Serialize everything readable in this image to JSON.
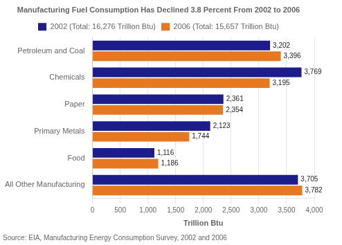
{
  "chart_data": {
    "type": "bar",
    "orientation": "horizontal",
    "title": "Manufacturing Fuel Consumption Has Declined 3.8 Percent From 2002 to 2006",
    "categories": [
      "Petroleum and Coal",
      "Chemicals",
      "Paper",
      "Primary Metals",
      "Food",
      "All Other Manufacturing"
    ],
    "series": [
      {
        "name": "2002 (Total: 16,276 Trillion Btu)",
        "color": "#1C1C8A",
        "values": [
          3202,
          3769,
          2361,
          2123,
          1116,
          3705
        ],
        "value_labels": [
          "3,202",
          "3,769",
          "2,361",
          "2,123",
          "1,116",
          "3,705"
        ]
      },
      {
        "name": "2006 (Total: 15,657 Trillion Btu)",
        "color": "#E87820",
        "values": [
          3396,
          3195,
          2354,
          1744,
          1186,
          3782
        ],
        "value_labels": [
          "3,396",
          "3,195",
          "2,354",
          "1,744",
          "1,186",
          "3,782"
        ]
      }
    ],
    "xlabel": "Trillion Btu",
    "xlim": [
      0,
      4000
    ],
    "xticks": [
      0,
      500,
      {
        "value": 1000,
        "label": "1,000"
      },
      {
        "value": 1500,
        "label": "1,500"
      },
      {
        "value": 2000,
        "label": "2,000"
      },
      {
        "value": 2500,
        "label": "2,500"
      },
      {
        "value": 3000,
        "label": "3,000"
      },
      {
        "value": 3500,
        "label": "3,500"
      },
      {
        "value": 4000,
        "label": "4,000"
      }
    ],
    "grid": true,
    "legend": "top",
    "data_labels": true,
    "annotations": [
      "Source: EIA, Manufacturing Energy Consumption Survey, 2002 and 2006"
    ]
  }
}
